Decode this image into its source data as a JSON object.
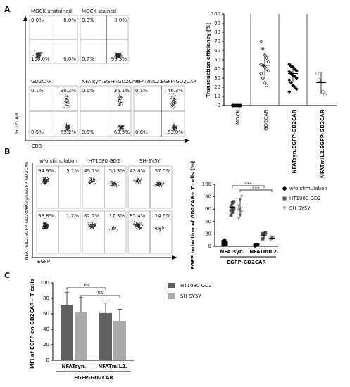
{
  "panel_labels": [
    "A",
    "B",
    "C"
  ],
  "flow_a": {
    "y_axis": "GD2CAR",
    "x_axis": "CD3",
    "plots": [
      {
        "title": "MOCK unstained",
        "quadrants": [
          "0.0%",
          "0.0%",
          "100.0%",
          "0.0%"
        ]
      },
      {
        "title": "MOCK stained",
        "quadrants": [
          "0.0%",
          "0.0%",
          "0.7%",
          "99.3%"
        ]
      },
      {
        "title": "GD2CAR",
        "quadrants": [
          "0.1%",
          "30.2%",
          "0.5%",
          "69.2%"
        ]
      },
      {
        "title": "NFATsyn.EGFP-GD2CAR",
        "quadrants": [
          "0.1%",
          "36.1%",
          "0.5%",
          "63.3%"
        ]
      },
      {
        "title": "NFATmIL2.EGFP-GD2CAR",
        "quadrants": [
          "0.1%",
          "46.3%",
          "0.6%",
          "53.0%"
        ]
      }
    ]
  },
  "flow_b": {
    "x_axis": "EGFP",
    "columns": [
      "w/o stimulation",
      "HT1080 GD2",
      "SH-SY5Y"
    ],
    "rows": [
      {
        "label": "NFATsyn.EGFP-GD2CAR",
        "quadrants": [
          [
            "94.9%",
            "5.1%"
          ],
          [
            "49.7%",
            "50.3%"
          ],
          [
            "43.0%",
            "57.0%"
          ]
        ]
      },
      {
        "label": "NFATmIL2.EGFP-GD2CAR",
        "quadrants": [
          [
            "98.8%",
            "1.2%"
          ],
          [
            "82.7%",
            "17.3%"
          ],
          [
            "85.4%",
            "14.6%"
          ]
        ]
      }
    ]
  },
  "chart_data": [
    {
      "type": "strip",
      "ylabel": "Transduction efficiency [%]",
      "categories": [
        "MOCK",
        "GD2CAR",
        "NFATsyn.EGFP-GD2CAR",
        "NFATmIL2.EGFP-GD2CAR"
      ],
      "values": [
        [
          0,
          0,
          0,
          0,
          0,
          0
        ],
        [
          70,
          62,
          55,
          52,
          48,
          45,
          44,
          42,
          40,
          38,
          35,
          30,
          25,
          22
        ],
        [
          45,
          43,
          42,
          40,
          38,
          37,
          35,
          33,
          32,
          30,
          28,
          25,
          22,
          20,
          18,
          15
        ],
        [
          35,
          28,
          25,
          15,
          12
        ]
      ],
      "means": [
        0.5,
        44,
        35,
        25
      ],
      "sds": [
        0.3,
        12,
        9,
        12
      ],
      "marker_shape": [
        "circle",
        "diamond",
        "diamond",
        "circle"
      ],
      "marker_fill": [
        "#000000",
        "#ffffff",
        "#000000",
        "#ffffff"
      ],
      "marker_stroke": [
        "#000000",
        "#000000",
        "#000000",
        "#777777"
      ],
      "ylim": [
        0,
        100
      ],
      "yticks": [
        0,
        10,
        20,
        30,
        40,
        50,
        60,
        70,
        80,
        90,
        100
      ]
    },
    {
      "type": "grouped_strip",
      "ylabel": "EGFP induction of GD2CAR+ T cells [%]",
      "categories": [
        "NFATsyn.",
        "NFATmIL2."
      ],
      "group_label": "EGFP-GD2CAR",
      "series": [
        {
          "name": "w/o stimulation",
          "color": "#000000",
          "marker": "circle",
          "values": [
            5,
            2
          ],
          "errors": [
            3,
            1
          ],
          "points": [
            [
              2,
              4,
              6,
              8,
              10,
              3,
              5,
              7
            ],
            [
              1,
              2,
              3,
              2
            ]
          ]
        },
        {
          "name": "HT1080 GD2",
          "color": "#555555",
          "marker": "square",
          "values": [
            63,
            18
          ],
          "errors": [
            10,
            6
          ],
          "points": [
            [
              50,
              55,
              60,
              65,
              70,
              72,
              58,
              62
            ],
            [
              12,
              18,
              22,
              20
            ]
          ]
        },
        {
          "name": "SH-SY5Y",
          "color": "#999999",
          "marker": "triangle",
          "values": [
            62,
            13
          ],
          "errors": [
            15,
            3
          ],
          "points": [
            [
              45,
              50,
              55,
              65,
              75,
              80,
              58,
              60
            ],
            [
              10,
              12,
              14,
              15
            ]
          ]
        }
      ],
      "annotations": [
        "***",
        "***"
      ],
      "ylim": [
        0,
        100
      ],
      "yticks": [
        0,
        20,
        40,
        60,
        80,
        100
      ]
    },
    {
      "type": "bar",
      "ylabel": "MFI of EGFP on GD2CAR+ T cells",
      "categories": [
        "NFATsyn.",
        "NFATmIL2."
      ],
      "group_label": "EGFP-GD2CAR",
      "series": [
        {
          "name": "HT1080 GD2",
          "color": "#606060",
          "values": [
            71,
            61
          ],
          "errors": [
            17,
            13
          ]
        },
        {
          "name": "SH-SY5Y",
          "color": "#aaaaaa",
          "values": [
            62,
            51
          ],
          "errors": [
            19,
            15
          ]
        }
      ],
      "annotations": [
        "ns",
        "ns"
      ],
      "ylim": [
        0,
        100
      ],
      "yticks": [
        0,
        20,
        40,
        60,
        80,
        100
      ]
    }
  ]
}
